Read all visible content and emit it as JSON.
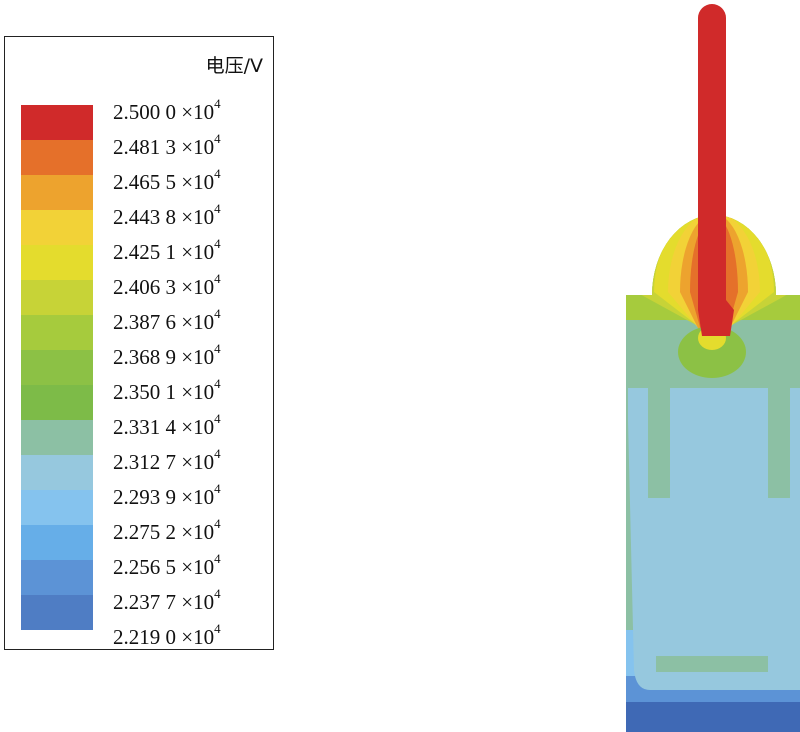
{
  "legend": {
    "title": "电压/V",
    "labels": [
      {
        "mant": "2.500 0",
        "op": "×",
        "base": "10",
        "exp": "4"
      },
      {
        "mant": "2.481 3",
        "op": "×",
        "base": "10",
        "exp": "4"
      },
      {
        "mant": "2.465 5",
        "op": "×",
        "base": "10",
        "exp": "4"
      },
      {
        "mant": "2.443 8",
        "op": "×",
        "base": "10",
        "exp": "4"
      },
      {
        "mant": "2.425 1",
        "op": "×",
        "base": "10",
        "exp": "4"
      },
      {
        "mant": "2.406 3",
        "op": "×",
        "base": "10",
        "exp": "4"
      },
      {
        "mant": "2.387 6",
        "op": "×",
        "base": "10",
        "exp": "4"
      },
      {
        "mant": "2.368 9",
        "op": "×",
        "base": "10",
        "exp": "4"
      },
      {
        "mant": "2.350 1",
        "op": "×",
        "base": "10",
        "exp": "4"
      },
      {
        "mant": "2.331 4",
        "op": "×",
        "base": "10",
        "exp": "4"
      },
      {
        "mant": "2.312 7",
        "op": "×",
        "base": "10",
        "exp": "4"
      },
      {
        "mant": "2.293 9",
        "op": "×",
        "base": "10",
        "exp": "4"
      },
      {
        "mant": "2.275 2",
        "op": "×",
        "base": "10",
        "exp": "4"
      },
      {
        "mant": "2.256 5",
        "op": "×",
        "base": "10",
        "exp": "4"
      },
      {
        "mant": "2.237 7",
        "op": "×",
        "base": "10",
        "exp": "4"
      },
      {
        "mant": "2.219 0",
        "op": "×",
        "base": "10",
        "exp": "4"
      }
    ],
    "colors": [
      "#d02a2a",
      "#e5702a",
      "#eda32e",
      "#f2d237",
      "#e4dc2d",
      "#c7d337",
      "#a6cb3d",
      "#8cc145",
      "#7dbb48",
      "#8cc0a4",
      "#96c8de",
      "#85c3ee",
      "#66aee8",
      "#5c93d6",
      "#4f7dc4",
      "#3f69b5"
    ]
  },
  "field": {
    "electrode": "#d02a2a",
    "halo": [
      "#e5702a",
      "#eda32e",
      "#f2d237",
      "#e4dc2d",
      "#c7d337",
      "#a6cb3d"
    ],
    "upper_green": "#8cc145",
    "body": "#8cc0a4",
    "inner": "#96c8de",
    "bottom_bands": [
      "#85c3ee",
      "#5c93d6",
      "#3f69b5"
    ],
    "bottom_strip": "#8cc0a4"
  }
}
